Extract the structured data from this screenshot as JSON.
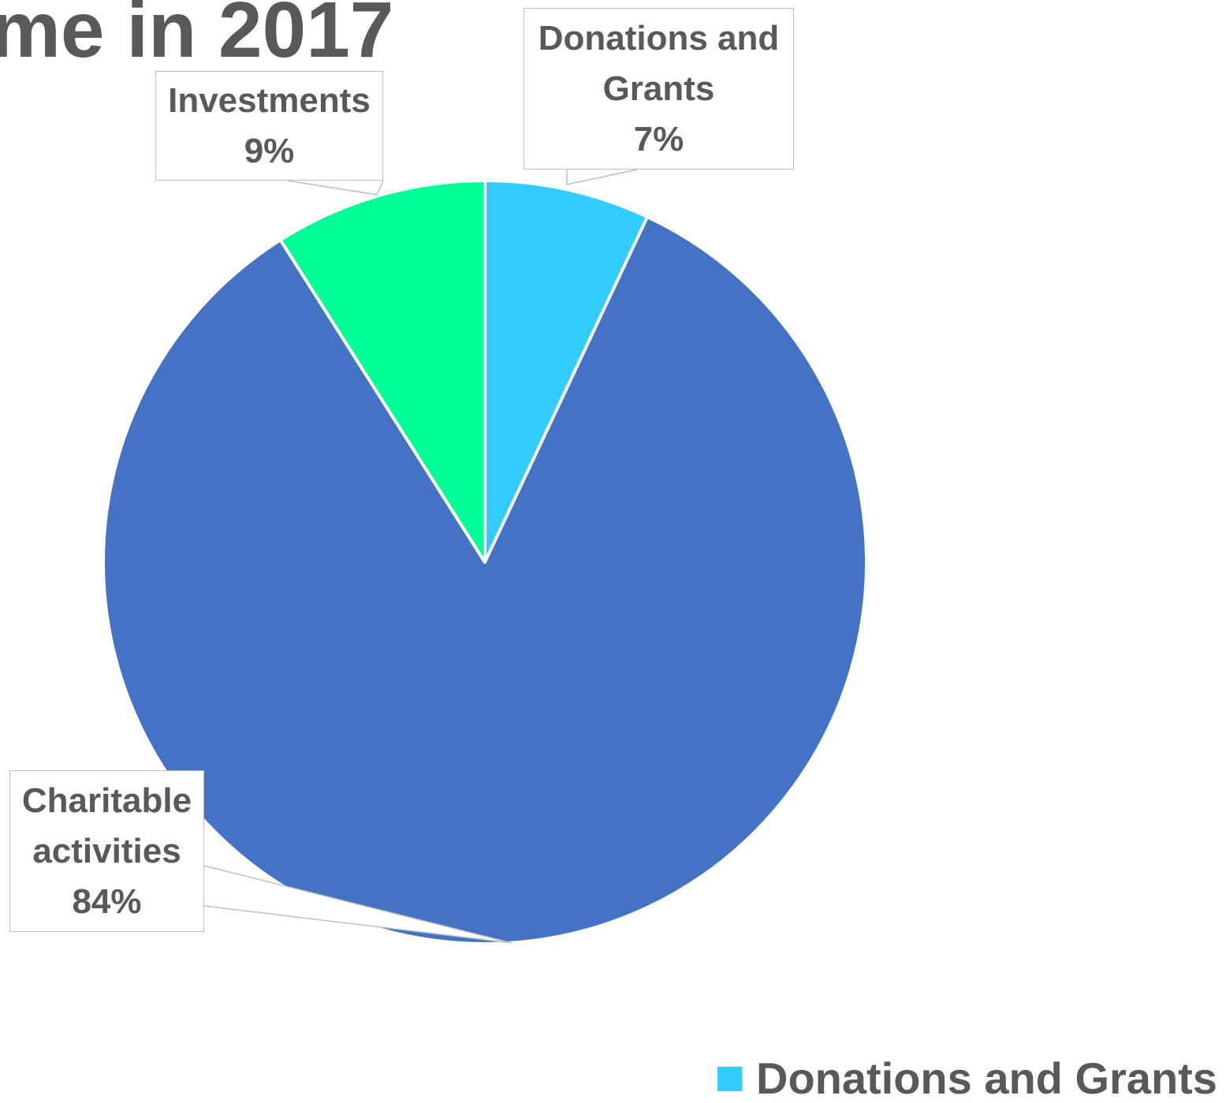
{
  "chart_data": {
    "type": "pie",
    "title": "me in 2017",
    "slices": [
      {
        "label_lines": [
          "Donations and",
          "Grants"
        ],
        "value": 7,
        "value_label": "7%",
        "color": "#33ccff"
      },
      {
        "label_lines": [
          "Charitable",
          "activities"
        ],
        "value": 84,
        "value_label": "84%",
        "color": "#4472c4"
      },
      {
        "label_lines": [
          "Investments"
        ],
        "value": 9,
        "value_label": "9%",
        "color": "#00ff99"
      }
    ],
    "start_angle_deg": 0,
    "direction": "clockwise",
    "legend": {
      "placement": "bottom-right",
      "items": [
        {
          "label": "Donations and Grants",
          "color": "#33ccff"
        }
      ]
    },
    "colors": {
      "text": "#595959",
      "label_border": "#bfbfbf",
      "slice_border": "#ffffff"
    }
  }
}
